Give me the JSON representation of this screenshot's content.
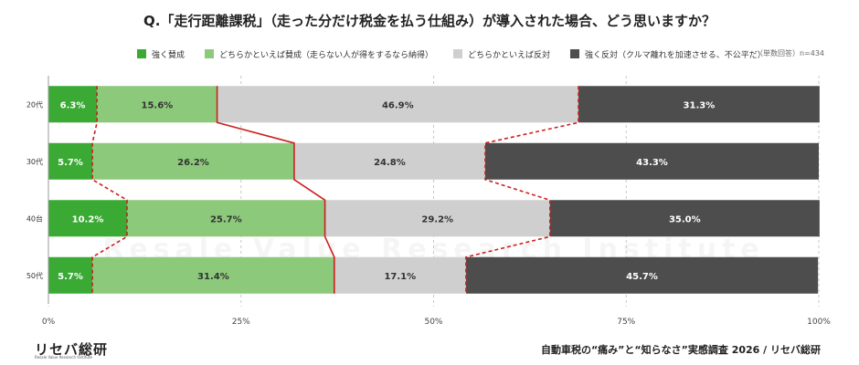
{
  "title": "Q.「走行距離課税」（走った分だけ税金を払う仕組み）が導入された場合、どう思いますか？",
  "legend": [
    {
      "label": "強く賛成",
      "color": "#3aaa35"
    },
    {
      "label": "どちらかといえば賛成（走らない人が得をするなら納得）",
      "color": "#8cc97a"
    },
    {
      "label": "どちらかといえば反対",
      "color": "#cfcfcf"
    },
    {
      "label": "強く反対（クルマ離れを加速させる、不公平だ）",
      "color": "#4d4d4d"
    }
  ],
  "note": "（単数回答）n=434",
  "footer": {
    "logo_text": "リセバ総研",
    "logo_sub": "Resale Value Research Institute",
    "source": "自動車税の“痛み”と“知らなさ”実感調査 2026 / リセバ総研"
  },
  "chart_data": {
    "type": "bar",
    "orientation": "horizontal",
    "stacked": true,
    "percent": true,
    "categories": [
      "20代",
      "30代",
      "40台",
      "50代"
    ],
    "series": [
      {
        "name": "強く賛成",
        "color": "#3aaa35",
        "values": [
          6.3,
          5.7,
          10.2,
          5.7
        ],
        "labels": [
          "6.3%",
          "5.7%",
          "10.2%",
          "5.7%"
        ],
        "label_color": "#ffffff"
      },
      {
        "name": "どちらかといえば賛成（走らない人が得をするなら納得）",
        "color": "#8cc97a",
        "values": [
          15.6,
          26.2,
          25.7,
          31.4
        ],
        "labels": [
          "15.6%",
          "26.2%",
          "25.7%",
          "31.4%"
        ],
        "label_color": "#333333"
      },
      {
        "name": "どちらかといえば反対",
        "color": "#cfcfcf",
        "values": [
          46.9,
          24.8,
          29.2,
          17.1
        ],
        "labels": [
          "46.9%",
          "24.8%",
          "29.2%",
          "17.1%"
        ],
        "label_color": "#333333"
      },
      {
        "name": "強く反対（クルマ離れを加速させる、不公平だ）",
        "color": "#4d4d4d",
        "values": [
          31.3,
          43.3,
          35.0,
          45.7
        ],
        "labels": [
          "31.3%",
          "43.3%",
          "35.0%",
          "45.7%"
        ],
        "label_color": "#ffffff"
      }
    ],
    "xlim": [
      0,
      100
    ],
    "x_ticks": [
      "0%",
      "25%",
      "50%",
      "75%",
      "100%"
    ],
    "x_tick_values": [
      0,
      25,
      50,
      75,
      100
    ],
    "grid": "vertical-dashed",
    "legend_position": "top",
    "connectors": [
      {
        "after_series": 0,
        "style": "dashed",
        "color": "#cc1f1f"
      },
      {
        "after_series": 1,
        "style": "solid",
        "color": "#cc1f1f"
      },
      {
        "after_series": 2,
        "style": "dashed",
        "color": "#cc1f1f"
      }
    ],
    "watermark": "Resale Value Research Institute"
  }
}
